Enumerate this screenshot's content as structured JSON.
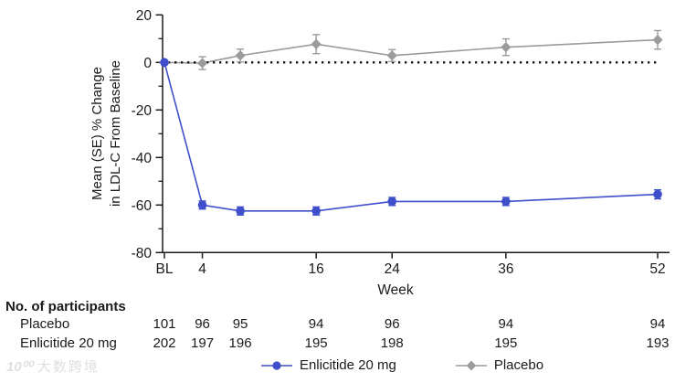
{
  "chart_data": {
    "type": "line",
    "title": "",
    "xlabel": "Week",
    "ylabel_lines": [
      "Mean (SE) % Change",
      "in LDL-C From Baseline"
    ],
    "ylim": [
      -80,
      20
    ],
    "y_major_ticks": [
      20,
      0,
      -20,
      -40,
      -60,
      -80
    ],
    "y_minor_ticks": [
      10,
      -10,
      -30,
      -50,
      -70
    ],
    "x_weeks": [
      0,
      4,
      8,
      16,
      24,
      36,
      52
    ],
    "x_tick_weeks": [
      0,
      4,
      16,
      24,
      36,
      52
    ],
    "x_tick_labels": [
      "BL",
      "4",
      "16",
      "24",
      "36",
      "52"
    ],
    "reference_line_y": 0,
    "grid": false,
    "legend_position": "bottom",
    "series": [
      {
        "name": "Placebo",
        "color": "#9b9b9b",
        "marker": "diamond",
        "values": [
          0,
          -0.3,
          2.9,
          7.7,
          2.9,
          6.4,
          9.5
        ],
        "se": [
          0,
          2.7,
          2.7,
          4.0,
          2.5,
          3.5,
          3.9
        ]
      },
      {
        "name": "Enlicitide 20 mg",
        "color": "#3f4fcb",
        "marker": "circle",
        "values": [
          0,
          -60,
          -62.5,
          -62.5,
          -58.5,
          -58.5,
          -55.5
        ],
        "se": [
          0,
          1.7,
          1.7,
          1.7,
          1.7,
          1.7,
          1.9
        ]
      }
    ]
  },
  "axis": {
    "xlabel": "Week",
    "ylabel_line1": "Mean (SE) % Change",
    "ylabel_line2": "in LDL-C From Baseline"
  },
  "participants": {
    "title": "No. of participants",
    "rows": [
      {
        "label": "Placebo",
        "counts": [
          101,
          96,
          95,
          94,
          96,
          94,
          94
        ]
      },
      {
        "label": "Enlicitide 20 mg",
        "counts": [
          202,
          197,
          196,
          195,
          198,
          195,
          193
        ]
      }
    ]
  },
  "legend": [
    {
      "label": "Enlicitide 20 mg",
      "marker": "circle",
      "color": "#3f4fcb"
    },
    {
      "label": "Placebo",
      "marker": "diamond",
      "color": "#9b9b9b"
    }
  ],
  "watermark": {
    "logo": "10⁰⁰",
    "text": "大数跨境"
  },
  "colors": {
    "enlicitide": "#3f4fcb",
    "placebo": "#9b9b9b",
    "axis": "#1a1a1a",
    "reference_line": "#111111"
  }
}
